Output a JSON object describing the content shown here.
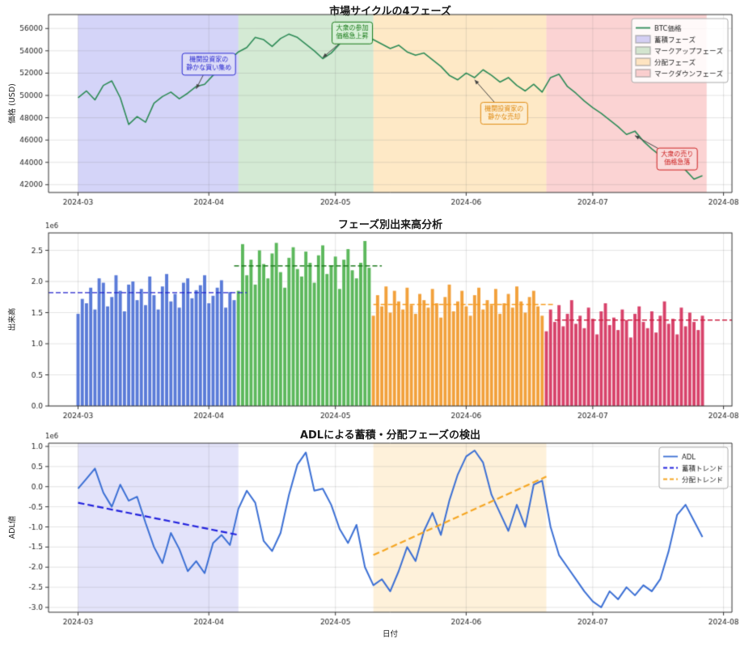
{
  "chart_data": [
    {
      "type": "line",
      "title": "市場サイクルの4フェーズ",
      "ylabel": "価格 (USD)",
      "xlim": [
        -7,
        155
      ],
      "ylim": [
        41300,
        57250
      ],
      "yticks": [
        {
          "v": 42000,
          "label": "42000"
        },
        {
          "v": 44000,
          "label": "44000"
        },
        {
          "v": 46000,
          "label": "46000"
        },
        {
          "v": 48000,
          "label": "48000"
        },
        {
          "v": 50000,
          "label": "50000"
        },
        {
          "v": 52000,
          "label": "52000"
        },
        {
          "v": 54000,
          "label": "54000"
        },
        {
          "v": 56000,
          "label": "56000"
        }
      ],
      "xticks": [
        {
          "d": 0,
          "label": "2024-03"
        },
        {
          "d": 31,
          "label": "2024-04"
        },
        {
          "d": 61,
          "label": "2024-05"
        },
        {
          "d": 92,
          "label": "2024-06"
        },
        {
          "d": 122,
          "label": "2024-07"
        },
        {
          "d": 153,
          "label": "2024-08"
        }
      ],
      "regions": [
        {
          "label": "蓄積フェーズ",
          "from": 0,
          "to": 38,
          "color": "rgba(102,102,230,0.28)"
        },
        {
          "label": "マークアップフェーズ",
          "from": 38,
          "to": 70,
          "color": "rgba(85,170,85,0.25)"
        },
        {
          "label": "分配フェーズ",
          "from": 70,
          "to": 111,
          "color": "rgba(250,175,50,0.28)"
        },
        {
          "label": "マークダウンフェーズ",
          "from": 111,
          "to": 149,
          "color": "rgba(240,80,80,0.25)"
        }
      ],
      "series": [
        {
          "name": "BTC価格",
          "color": "#2e8b57",
          "width": 1.6,
          "x_start": 0,
          "x_step": 2,
          "values": [
            49800,
            50400,
            49600,
            50900,
            51300,
            49800,
            47400,
            48100,
            47600,
            49300,
            49900,
            50300,
            49700,
            50200,
            50800,
            51000,
            51800,
            52300,
            53200,
            53900,
            54300,
            55200,
            55000,
            54400,
            55100,
            55500,
            55200,
            54600,
            54000,
            53300,
            53800,
            54600,
            55400,
            56300,
            55600,
            55000,
            54600,
            54200,
            54500,
            53900,
            53600,
            53800,
            53200,
            52600,
            51800,
            51400,
            52000,
            51600,
            52300,
            51800,
            51200,
            51600,
            50900,
            50400,
            51000,
            50300,
            51600,
            51900,
            50800,
            50200,
            49500,
            48900,
            48400,
            47800,
            47200,
            46500,
            46800,
            45900,
            45200,
            44600,
            44900,
            43900,
            43300,
            42500,
            42800
          ]
        }
      ],
      "annotations": [
        {
          "lines": [
            "機関投資家の",
            "静かな買い集め"
          ],
          "color": "#2a2ad0",
          "bg": "#dcdcf8",
          "cx": 31,
          "cy": 52800,
          "tx": 28,
          "ty": 50600
        },
        {
          "lines": [
            "大衆の参加",
            "価格急上昇"
          ],
          "color": "#187a18",
          "bg": "#d8f0d8",
          "cx": 65,
          "cy": 55600,
          "tx": 58,
          "ty": 53400
        },
        {
          "lines": [
            "機関投資家の",
            "静かな売却"
          ],
          "color": "#e08a10",
          "bg": "#fdedd0",
          "cx": 101,
          "cy": 48400,
          "tx": 94,
          "ty": 51400
        },
        {
          "lines": [
            "大衆の売り",
            "価格急落"
          ],
          "color": "#cc2020",
          "bg": "#fadada",
          "cx": 142,
          "cy": 44300,
          "tx": 132,
          "ty": 46400
        }
      ],
      "legend": [
        {
          "label": "BTC価格",
          "type": "line",
          "color": "#2e8b57"
        },
        {
          "label": "蓄積フェーズ",
          "type": "patch",
          "color": "rgba(102,102,230,0.28)"
        },
        {
          "label": "マークアップフェーズ",
          "type": "patch",
          "color": "rgba(85,170,85,0.25)"
        },
        {
          "label": "分配フェーズ",
          "type": "patch",
          "color": "rgba(250,175,50,0.28)"
        },
        {
          "label": "マークダウンフェーズ",
          "type": "patch",
          "color": "rgba(240,80,80,0.25)"
        }
      ]
    },
    {
      "type": "bar",
      "title": "フェーズ別出来高分析",
      "ylabel": "出来高",
      "offset_text": "1e6",
      "xlim": [
        -7,
        155
      ],
      "ylim": [
        0,
        2.78
      ],
      "yticks": [
        {
          "v": 0,
          "label": "0.0"
        },
        {
          "v": 0.5,
          "label": "0.5"
        },
        {
          "v": 1.0,
          "label": "1.0"
        },
        {
          "v": 1.5,
          "label": "1.5"
        },
        {
          "v": 2.0,
          "label": "2.0"
        },
        {
          "v": 2.5,
          "label": "2.5"
        }
      ],
      "xticks": [
        {
          "d": 0,
          "label": "2024-03"
        },
        {
          "d": 31,
          "label": "2024-04"
        },
        {
          "d": 61,
          "label": "2024-05"
        },
        {
          "d": 92,
          "label": "2024-06"
        },
        {
          "d": 122,
          "label": "2024-07"
        },
        {
          "d": 153,
          "label": "2024-08"
        }
      ],
      "bars": {
        "x_start": 0,
        "x_step": 1,
        "width": 0.75,
        "phase_bounds": [
          38,
          70,
          111
        ],
        "colors": [
          "#5a7bd8",
          "#5cb85c",
          "#f2a13c",
          "#d8436b"
        ],
        "phase_names": [
          "蓄積フェーズ",
          "マークアップフェーズ",
          "分配フェーズ",
          "マークダウンフェーズ"
        ],
        "values": [
          1.48,
          1.72,
          1.65,
          1.9,
          1.55,
          2.05,
          1.98,
          1.6,
          1.75,
          2.1,
          1.85,
          1.52,
          1.95,
          2.0,
          1.7,
          1.88,
          1.62,
          2.08,
          1.78,
          1.55,
          1.92,
          2.12,
          1.68,
          1.8,
          1.58,
          1.98,
          2.05,
          1.73,
          1.86,
          1.94,
          2.1,
          1.65,
          1.77,
          1.9,
          2.02,
          1.58,
          1.83,
          1.7,
          1.85,
          2.6,
          2.1,
          2.35,
          1.95,
          2.5,
          2.28,
          2.05,
          2.45,
          2.62,
          2.15,
          1.9,
          2.38,
          2.55,
          2.2,
          2.08,
          2.48,
          2.3,
          1.98,
          2.42,
          2.58,
          2.12,
          2.25,
          2.4,
          1.88,
          2.35,
          2.52,
          2.18,
          2.05,
          2.3,
          2.65,
          2.22,
          1.45,
          1.78,
          1.6,
          1.92,
          1.5,
          1.85,
          1.68,
          1.55,
          1.9,
          1.62,
          1.48,
          1.8,
          1.7,
          1.58,
          1.88,
          1.65,
          1.42,
          1.75,
          1.95,
          1.52,
          1.68,
          1.85,
          1.6,
          1.45,
          1.78,
          1.9,
          1.55,
          1.7,
          1.62,
          1.88,
          1.48,
          1.65,
          1.8,
          1.58,
          1.92,
          1.68,
          1.5,
          1.75,
          1.85,
          1.6,
          1.45,
          1.2,
          1.55,
          1.35,
          1.62,
          1.28,
          1.48,
          1.7,
          1.32,
          1.45,
          1.25,
          1.58,
          1.4,
          1.15,
          1.52,
          1.65,
          1.3,
          1.42,
          1.22,
          1.55,
          1.38,
          1.1,
          1.48,
          1.6,
          1.35,
          1.25,
          1.52,
          1.18,
          1.45,
          1.68,
          1.32,
          1.4,
          1.15,
          1.58,
          1.28,
          1.5,
          1.35,
          1.22,
          1.45
        ]
      },
      "avg_lines": [
        {
          "value": 1.82,
          "from": -7,
          "to": 40,
          "color": "#2222cc"
        },
        {
          "value": 2.25,
          "from": 37,
          "to": 72,
          "color": "#1f7a1f"
        },
        {
          "value": 1.63,
          "from": 70,
          "to": 113,
          "color": "#f59b20"
        },
        {
          "value": 1.38,
          "from": 113,
          "to": 155,
          "color": "#cc2244"
        }
      ]
    },
    {
      "type": "line",
      "title": "ADLによる蓄積・分配フェーズの検出",
      "ylabel": "ADL値",
      "xlabel": "日付",
      "offset_text": "1e6",
      "xlim": [
        -7,
        155
      ],
      "ylim": [
        -3.12,
        1.08
      ],
      "yticks": [
        {
          "v": -3.0,
          "label": "-3.0"
        },
        {
          "v": -2.5,
          "label": "-2.5"
        },
        {
          "v": -2.0,
          "label": "-2.0"
        },
        {
          "v": -1.5,
          "label": "-1.5"
        },
        {
          "v": -1.0,
          "label": "-1.0"
        },
        {
          "v": -0.5,
          "label": "-0.5"
        },
        {
          "v": 0.0,
          "label": "0.0"
        },
        {
          "v": 0.5,
          "label": "0.5"
        },
        {
          "v": 1.0,
          "label": "1.0"
        }
      ],
      "xticks": [
        {
          "d": 0,
          "label": "2024-03"
        },
        {
          "d": 31,
          "label": "2024-04"
        },
        {
          "d": 61,
          "label": "2024-05"
        },
        {
          "d": 92,
          "label": "2024-06"
        },
        {
          "d": 122,
          "label": "2024-07"
        },
        {
          "d": 153,
          "label": "2024-08"
        }
      ],
      "regions": [
        {
          "label": "蓄積",
          "from": 0,
          "to": 38,
          "color": "rgba(102,102,230,0.18)"
        },
        {
          "label": "分配",
          "from": 70,
          "to": 111,
          "color": "rgba(250,175,50,0.18)"
        }
      ],
      "series": [
        {
          "name": "ADL",
          "color": "#3b6fd4",
          "width": 2,
          "x_start": 0,
          "x_step": 2,
          "values": [
            -0.05,
            0.2,
            0.45,
            -0.15,
            -0.5,
            0.05,
            -0.35,
            -0.25,
            -0.9,
            -1.5,
            -1.9,
            -1.15,
            -1.55,
            -2.1,
            -1.85,
            -2.15,
            -1.4,
            -1.2,
            -1.45,
            -0.55,
            -0.1,
            -0.4,
            -1.35,
            -1.6,
            -1.15,
            -0.2,
            0.55,
            0.85,
            -0.1,
            -0.05,
            -0.45,
            -1.05,
            -1.4,
            -0.95,
            -2.0,
            -2.45,
            -2.3,
            -2.6,
            -2.1,
            -1.5,
            -1.85,
            -1.1,
            -0.65,
            -1.2,
            -0.35,
            0.3,
            0.75,
            0.9,
            0.6,
            -0.2,
            -0.65,
            -1.1,
            -0.45,
            -1.0,
            0.05,
            0.15,
            -1.0,
            -1.7,
            -2.0,
            -2.3,
            -2.6,
            -2.85,
            -3.0,
            -2.6,
            -2.8,
            -2.5,
            -2.7,
            -2.45,
            -2.6,
            -2.3,
            -1.6,
            -0.7,
            -0.45,
            -0.85,
            -1.25
          ]
        }
      ],
      "trend_lines": [
        {
          "name": "蓄積トレンド",
          "color": "#2222dd",
          "x1": 0,
          "y1": -0.4,
          "x2": 38,
          "y2": -1.2
        },
        {
          "name": "分配トレンド",
          "color": "#f5a623",
          "x1": 70,
          "y1": -1.7,
          "x2": 111,
          "y2": 0.25
        }
      ],
      "legend": [
        {
          "label": "ADL",
          "type": "line",
          "color": "#3b6fd4"
        },
        {
          "label": "蓄積トレンド",
          "type": "dash",
          "color": "#2222dd"
        },
        {
          "label": "分配トレンド",
          "type": "dash",
          "color": "#f5a623"
        }
      ]
    }
  ]
}
